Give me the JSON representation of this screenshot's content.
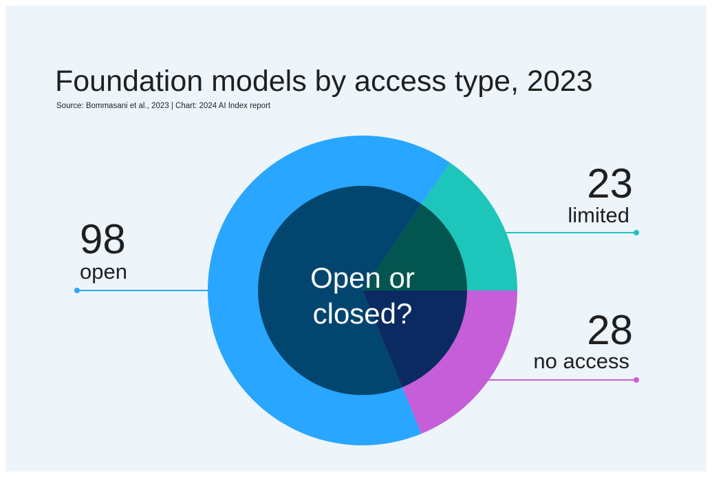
{
  "chart_data": {
    "type": "pie",
    "title": "Foundation models by access type, 2023",
    "subtitle": "Source: Bommasani et al., 2023 | Chart: 2024 AI Index report",
    "center_label": [
      "Open or",
      "closed?"
    ],
    "categories": [
      "no access",
      "open",
      "limited"
    ],
    "values": [
      28,
      98,
      23
    ],
    "colors": [
      "#c55ed8",
      "#29a6ff",
      "#1ec5bb"
    ],
    "inner_colors": [
      "#0b2a62",
      "#02466f",
      "#03554f"
    ]
  }
}
